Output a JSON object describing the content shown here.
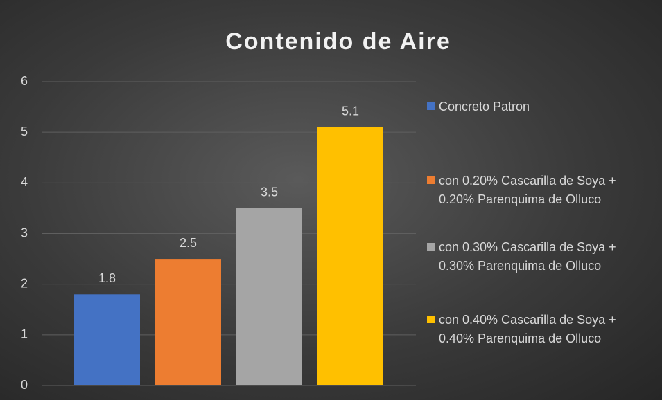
{
  "chart_data": {
    "type": "bar",
    "title": "Contenido de Aire",
    "categories": [
      null
    ],
    "series": [
      {
        "name": "Concreto Patron",
        "color": "#4472c4",
        "values": [
          1.8
        ]
      },
      {
        "name": "con 0.20% Cascarilla de Soya + 0.20% Parenquima de Olluco",
        "color": "#ed7d31",
        "values": [
          2.5
        ]
      },
      {
        "name": "con 0.30% Cascarilla de Soya + 0.30% Parenquima de Olluco",
        "color": "#a5a5a5",
        "values": [
          3.5
        ]
      },
      {
        "name": "con 0.40% Cascarilla de Soya + 0.40% Parenquima de Olluco",
        "color": "#ffc000",
        "values": [
          5.1
        ]
      }
    ],
    "ylim": [
      0,
      6
    ],
    "yticks": [
      0,
      1,
      2,
      3,
      4,
      5,
      6
    ],
    "grid": true,
    "legend": "right"
  }
}
